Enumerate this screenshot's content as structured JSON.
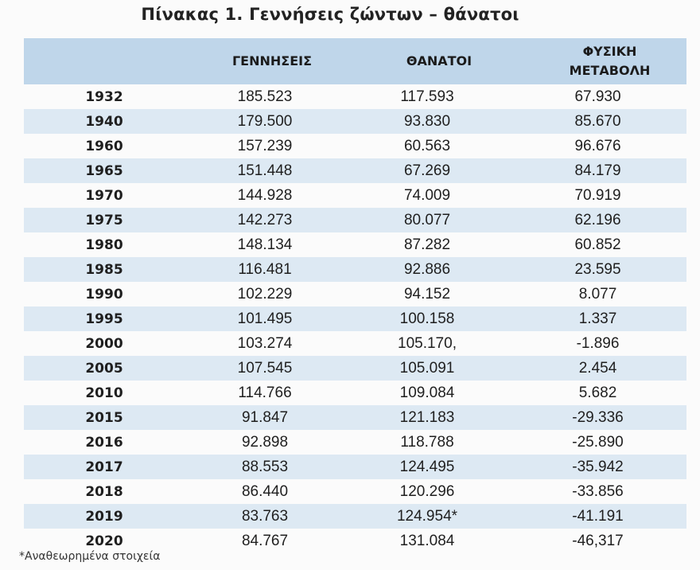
{
  "title": "Πίνακας 1. Γεννήσεις ζώντων – θάνατοι",
  "headers": {
    "year": "",
    "births": "ΓΕΝΝΗΣΕΙΣ",
    "deaths": "ΘΑΝΑΤΟΙ",
    "natural_change_line1": "ΦΥΣΙΚΗ",
    "natural_change_line2": "ΜΕΤΑΒΟΛΗ"
  },
  "rows": [
    {
      "year": "1932",
      "births": "185.523",
      "deaths": "117.593",
      "natural_change": "67.930"
    },
    {
      "year": "1940",
      "births": "179.500",
      "deaths": "93.830",
      "natural_change": "85.670"
    },
    {
      "year": "1960",
      "births": "157.239",
      "deaths": "60.563",
      "natural_change": "96.676"
    },
    {
      "year": "1965",
      "births": "151.448",
      "deaths": "67.269",
      "natural_change": "84.179"
    },
    {
      "year": "1970",
      "births": "144.928",
      "deaths": "74.009",
      "natural_change": "70.919"
    },
    {
      "year": "1975",
      "births": "142.273",
      "deaths": "80.077",
      "natural_change": "62.196"
    },
    {
      "year": "1980",
      "births": "148.134",
      "deaths": "87.282",
      "natural_change": "60.852"
    },
    {
      "year": "1985",
      "births": "116.481",
      "deaths": "92.886",
      "natural_change": "23.595"
    },
    {
      "year": "1990",
      "births": "102.229",
      "deaths": "94.152",
      "natural_change": "8.077"
    },
    {
      "year": "1995",
      "births": "101.495",
      "deaths": "100.158",
      "natural_change": "1.337"
    },
    {
      "year": "2000",
      "births": "103.274",
      "deaths": "105.170,",
      "natural_change": "-1.896"
    },
    {
      "year": "2005",
      "births": "107.545",
      "deaths": "105.091",
      "natural_change": "2.454"
    },
    {
      "year": "2010",
      "births": "114.766",
      "deaths": "109.084",
      "natural_change": "5.682"
    },
    {
      "year": "2015",
      "births": "91.847",
      "deaths": "121.183",
      "natural_change": "-29.336"
    },
    {
      "year": "2016",
      "births": "92.898",
      "deaths": "118.788",
      "natural_change": "-25.890"
    },
    {
      "year": "2017",
      "births": "88.553",
      "deaths": "124.495",
      "natural_change": "-35.942"
    },
    {
      "year": "2018",
      "births": "86.440",
      "deaths": "120.296",
      "natural_change": "-33.856"
    },
    {
      "year": "2019",
      "births": "83.763",
      "deaths": "124.954*",
      "natural_change": "-41.191"
    },
    {
      "year": "2020",
      "births": "84.767",
      "deaths": "131.084",
      "natural_change": "-46,317"
    }
  ],
  "footnote": "*Αναθεωρημένα στοιχεία"
}
